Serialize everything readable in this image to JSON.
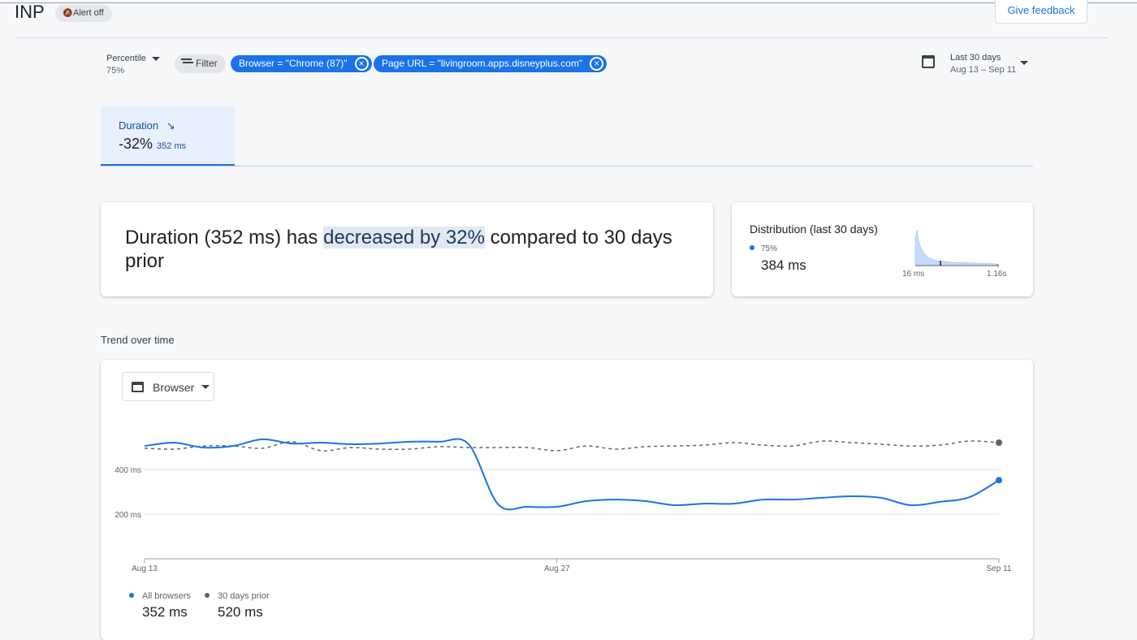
{
  "header": {
    "title": "INP",
    "alert": "Alert off",
    "feedback": "Give feedback"
  },
  "toolbar": {
    "percentile_label": "Percentile",
    "percentile_value": "75%",
    "filter": "Filter",
    "chips": [
      "Browser = \"Chrome (87)\"",
      "Page URL = \"livingroom.apps.disneyplus.com\""
    ],
    "date_label": "Last 30 days",
    "date_range": "Aug 13 – Sep 11"
  },
  "tab": {
    "label": "Duration",
    "change": "-32%",
    "value": "352 ms"
  },
  "summary": {
    "parts": [
      "Duration (352 ms) has ",
      "decreased by 32%",
      " compared to 30 days prior"
    ]
  },
  "distribution": {
    "title": "Distribution (last 30 days)",
    "legend": "75%",
    "value": "384 ms",
    "axis_min": "16 ms",
    "axis_max": "1.16s"
  },
  "section_title": "Trend over time",
  "dimension_selector": "Browser",
  "chart_data": {
    "type": "line",
    "categories": [
      "Aug 13",
      null,
      null,
      null,
      null,
      null,
      null,
      null,
      null,
      null,
      null,
      null,
      null,
      null,
      "Aug 27",
      null,
      null,
      null,
      null,
      null,
      null,
      null,
      null,
      null,
      null,
      null,
      null,
      null,
      null,
      "Sep 11"
    ],
    "series": [
      {
        "name": "All browsers",
        "color": "#1a73e8",
        "dashed": false,
        "legend_value": "352 ms",
        "values": [
          505,
          520,
          498,
          505,
          535,
          516,
          520,
          513,
          516,
          524,
          524,
          513,
          244,
          233,
          233,
          258,
          265,
          258,
          240,
          247,
          247,
          265,
          265,
          273,
          280,
          273,
          240,
          255,
          276,
          352
        ]
      },
      {
        "name": "30 days prior",
        "color": "#5f6368",
        "dashed": true,
        "legend_value": "520 ms",
        "values": [
          495,
          491,
          505,
          505,
          495,
          524,
          484,
          498,
          491,
          491,
          502,
          498,
          498,
          498,
          484,
          505,
          491,
          502,
          505,
          509,
          520,
          509,
          505,
          527,
          520,
          513,
          505,
          509,
          527,
          520
        ]
      }
    ],
    "ylim": [
      0,
      600
    ],
    "yticks": [
      {
        "value": 200,
        "label": "200 ms"
      },
      {
        "value": 400,
        "label": "400 ms"
      }
    ],
    "grid": true
  }
}
